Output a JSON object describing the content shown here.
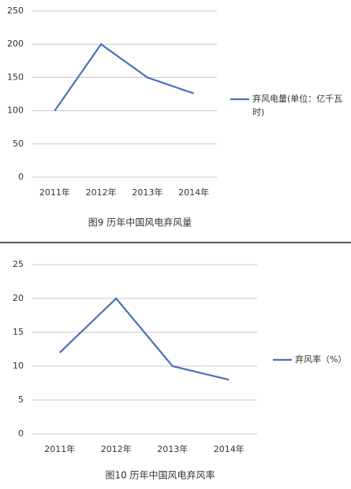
{
  "chart_data": [
    {
      "type": "line",
      "title": "图9 历年中国风电弃风量",
      "categories": [
        "2011年",
        "2012年",
        "2013年",
        "2014年"
      ],
      "series": [
        {
          "name": "弃风电量(单位：亿千瓦时)",
          "color": "#4a72b8",
          "values": [
            100,
            200,
            150,
            126
          ]
        }
      ],
      "ylim": [
        0,
        250
      ],
      "yticks": [
        0,
        50,
        100,
        150,
        200,
        250
      ],
      "grid": true,
      "legend": "right"
    },
    {
      "type": "line",
      "title": "图10 历年中国风电弃风率",
      "categories": [
        "2011年",
        "2012年",
        "2013年",
        "2014年"
      ],
      "series": [
        {
          "name": "弃风率（%）",
          "color": "#4a72b8",
          "values": [
            12,
            20,
            10,
            8
          ]
        }
      ],
      "ylim": [
        0,
        25
      ],
      "yticks": [
        0,
        5,
        10,
        15,
        20,
        25
      ],
      "grid": true,
      "legend": "right"
    }
  ]
}
